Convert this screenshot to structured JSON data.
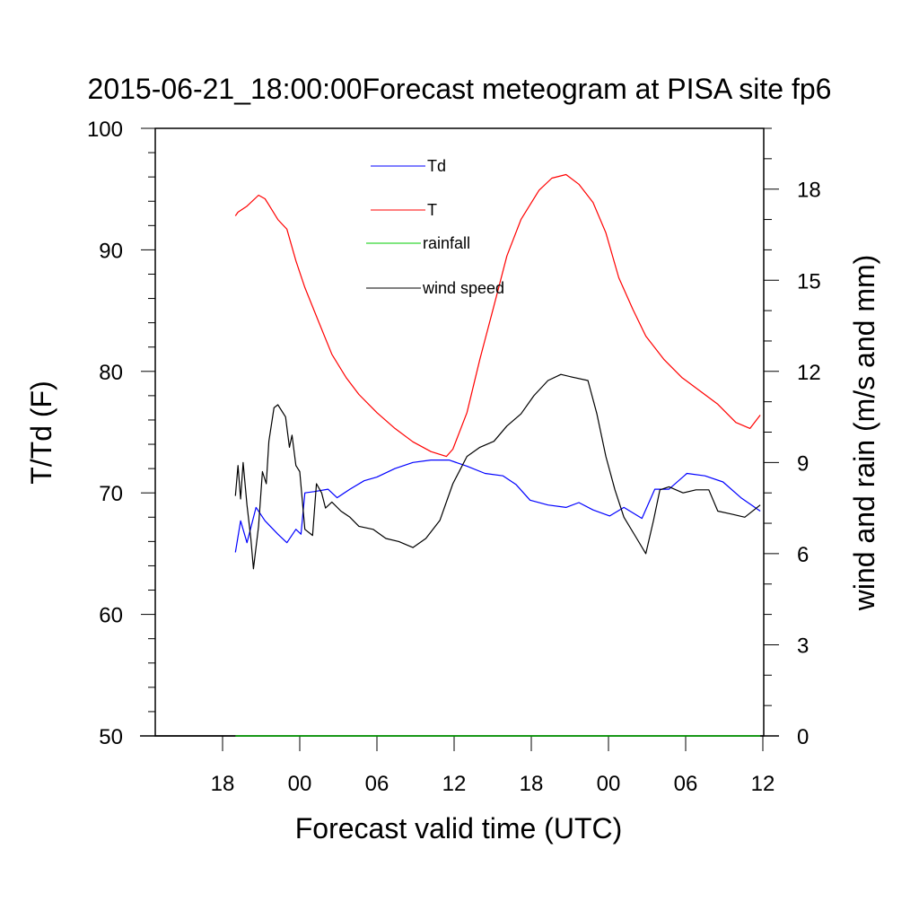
{
  "chart_data": {
    "type": "line",
    "title": "2015-06-21_18:00:00Forecast meteogram at PISA site fp6",
    "xlabel": "Forecast valid time (UTC)",
    "ylabel_left": "T/Td (F)",
    "ylabel_right": "wind and rain (m/s and mm)",
    "x_units": "hours since 2015-06-21 18:00 UTC",
    "xlim": [
      -5.2,
      42.0
    ],
    "ylim_left": [
      50,
      100
    ],
    "ylim_right": [
      0,
      20
    ],
    "x_ticks": [
      {
        "value": 0,
        "label": "18"
      },
      {
        "value": 6,
        "label": "00"
      },
      {
        "value": 12,
        "label": "06"
      },
      {
        "value": 18,
        "label": "12"
      },
      {
        "value": 24,
        "label": "18"
      },
      {
        "value": 30,
        "label": "00"
      },
      {
        "value": 36,
        "label": "06"
      },
      {
        "value": 42,
        "label": "12"
      }
    ],
    "y_ticks_left": [
      50,
      60,
      70,
      80,
      90,
      100
    ],
    "y_ticks_right": [
      0,
      3,
      6,
      9,
      12,
      15,
      18
    ],
    "grid": false,
    "legend": [
      {
        "label": "Td",
        "color": "#0000ff"
      },
      {
        "label": "T",
        "color": "#ff0000"
      },
      {
        "label": "rainfall",
        "color": "#00cc00"
      },
      {
        "label": "wind speed",
        "color": "#000000"
      }
    ],
    "legend_position": "top-center",
    "series": [
      {
        "name": "T",
        "axis": "left",
        "color": "#ff0000",
        "x": [
          1.0,
          1.2,
          1.9,
          2.8,
          3.3,
          3.6,
          4.3,
          5.0,
          5.7,
          6.4,
          7.5,
          8.5,
          9.6,
          10.6,
          12.0,
          13.4,
          14.8,
          16.2,
          17.4,
          17.9,
          19.0,
          20.0,
          21.1,
          22.1,
          23.2,
          24.6,
          25.6,
          26.7,
          27.7,
          28.8,
          29.8,
          30.8,
          31.9,
          32.9,
          34.3,
          35.7,
          37.1,
          38.5,
          39.9,
          41.0,
          41.8
        ],
        "y": [
          92.8,
          93.1,
          93.6,
          94.5,
          94.2,
          93.7,
          92.5,
          91.7,
          89.1,
          86.9,
          84.0,
          81.4,
          79.5,
          78.1,
          76.6,
          75.3,
          74.2,
          73.4,
          73.0,
          73.6,
          76.6,
          81.0,
          85.4,
          89.5,
          92.5,
          94.9,
          95.9,
          96.2,
          95.4,
          93.9,
          91.4,
          87.7,
          85.1,
          82.9,
          81.0,
          79.5,
          78.4,
          77.3,
          75.8,
          75.3,
          76.4
        ]
      },
      {
        "name": "Td",
        "axis": "left",
        "color": "#0000ff",
        "x": [
          1.0,
          1.4,
          1.9,
          2.6,
          3.3,
          4.3,
          5.0,
          5.7,
          6.1,
          6.4,
          7.1,
          8.2,
          8.9,
          9.9,
          11.0,
          12.0,
          13.4,
          14.8,
          16.2,
          17.6,
          19.0,
          20.4,
          21.8,
          22.8,
          23.9,
          25.3,
          26.7,
          27.7,
          28.8,
          30.1,
          31.2,
          32.6,
          33.6,
          34.7,
          36.1,
          37.5,
          38.9,
          40.3,
          41.8
        ],
        "y": [
          65.1,
          67.7,
          65.9,
          68.8,
          67.7,
          66.6,
          65.9,
          67.0,
          66.6,
          70.0,
          70.1,
          70.3,
          69.6,
          70.3,
          71.0,
          71.3,
          72.0,
          72.5,
          72.7,
          72.7,
          72.2,
          71.6,
          71.4,
          70.7,
          69.4,
          69.0,
          68.8,
          69.2,
          68.6,
          68.1,
          68.8,
          67.9,
          70.3,
          70.3,
          71.6,
          71.4,
          70.9,
          69.6,
          68.5
        ]
      },
      {
        "name": "rainfall",
        "axis": "right",
        "color": "#00cc00",
        "x": [
          1.0,
          41.8
        ],
        "y": [
          0,
          0
        ]
      },
      {
        "name": "wind speed",
        "axis": "right",
        "color": "#000000",
        "x": [
          1.0,
          1.2,
          1.4,
          1.6,
          1.9,
          2.2,
          2.4,
          2.8,
          3.1,
          3.4,
          3.6,
          4.0,
          4.3,
          4.9,
          5.2,
          5.4,
          5.7,
          6.0,
          6.4,
          7.0,
          7.3,
          7.7,
          8.0,
          8.5,
          9.2,
          9.9,
          10.6,
          11.7,
          12.7,
          13.7,
          14.8,
          15.8,
          16.9,
          17.9,
          19.0,
          20.0,
          21.1,
          22.1,
          23.2,
          24.2,
          25.3,
          26.3,
          27.3,
          28.4,
          29.1,
          29.8,
          30.5,
          31.2,
          32.2,
          32.9,
          33.5,
          34.0,
          34.7,
          35.8,
          36.8,
          37.8,
          38.5,
          39.6,
          40.6,
          41.8
        ],
        "y": [
          7.9,
          8.9,
          7.8,
          9.0,
          7.6,
          6.5,
          5.5,
          6.9,
          8.7,
          8.3,
          9.7,
          10.8,
          10.9,
          10.5,
          9.5,
          9.9,
          8.9,
          8.7,
          6.8,
          6.6,
          8.3,
          8.0,
          7.5,
          7.7,
          7.4,
          7.2,
          6.9,
          6.8,
          6.5,
          6.4,
          6.2,
          6.5,
          7.1,
          8.3,
          9.2,
          9.5,
          9.7,
          10.2,
          10.6,
          11.2,
          11.7,
          11.9,
          11.8,
          11.7,
          10.6,
          9.2,
          8.1,
          7.2,
          6.5,
          6.0,
          7.1,
          8.1,
          8.2,
          8.0,
          8.1,
          8.1,
          7.4,
          7.3,
          7.2,
          7.6
        ]
      }
    ]
  }
}
